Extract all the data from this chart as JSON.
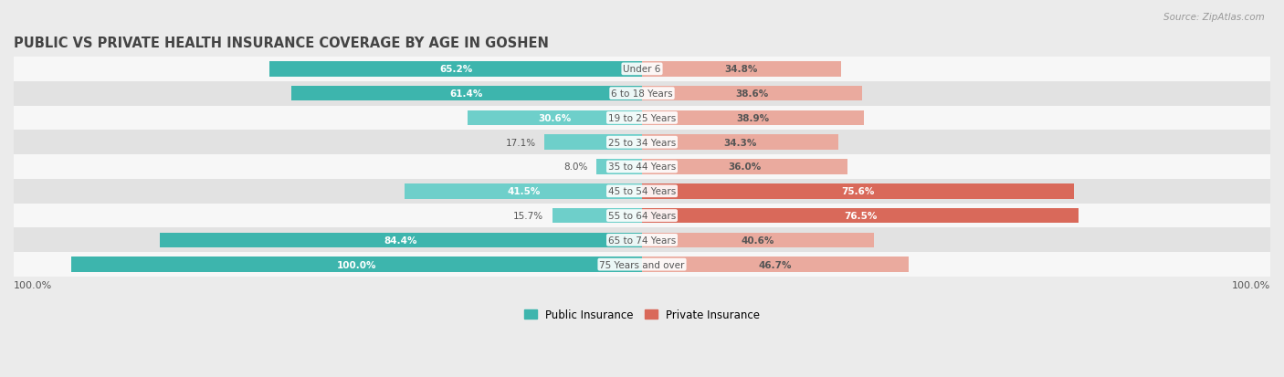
{
  "title": "PUBLIC VS PRIVATE HEALTH INSURANCE COVERAGE BY AGE IN GOSHEN",
  "source": "Source: ZipAtlas.com",
  "categories": [
    "Under 6",
    "6 to 18 Years",
    "19 to 25 Years",
    "25 to 34 Years",
    "35 to 44 Years",
    "45 to 54 Years",
    "55 to 64 Years",
    "65 to 74 Years",
    "75 Years and over"
  ],
  "public_values": [
    65.2,
    61.4,
    30.6,
    17.1,
    8.0,
    41.5,
    15.7,
    84.4,
    100.0
  ],
  "private_values": [
    34.8,
    38.6,
    38.9,
    34.3,
    36.0,
    75.6,
    76.5,
    40.6,
    46.7
  ],
  "public_color_strong": "#3db5ad",
  "public_color_light": "#6ecfca",
  "private_color_strong": "#d9695a",
  "private_color_light": "#eaaa9e",
  "bg_color": "#ebebeb",
  "row_bg_light": "#f7f7f7",
  "row_bg_dark": "#e2e2e2",
  "white_text": "#ffffff",
  "dark_text": "#555555",
  "title_color": "#444444",
  "bar_height": 0.62,
  "legend_public": "Public Insurance",
  "legend_private": "Private Insurance",
  "xlim": 110,
  "strong_threshold_pub": 60,
  "strong_threshold_priv": 60,
  "outside_label_threshold_pub": 20,
  "outside_label_threshold_priv": 20
}
